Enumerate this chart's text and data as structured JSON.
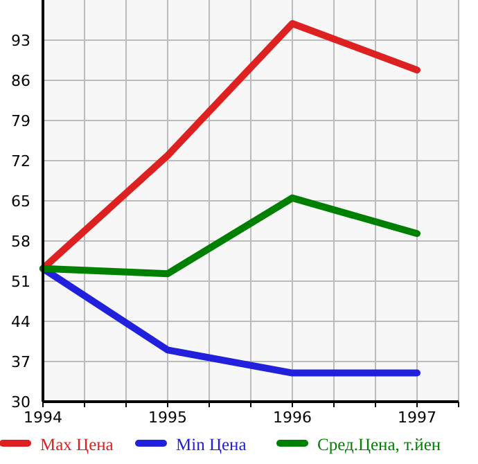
{
  "chart_data": {
    "type": "line",
    "x": [
      1994,
      1995,
      1996,
      1997
    ],
    "series": [
      {
        "name": "Max Цена",
        "color": "#dd2020",
        "values": [
          53.2,
          72.9,
          95.9,
          87.8
        ]
      },
      {
        "name": "Min Цена",
        "color": "#2020dd",
        "values": [
          53.2,
          39.0,
          35.0,
          35.0
        ]
      },
      {
        "name": "Сред.Цена, т.йен",
        "color": "#008000",
        "values": [
          53.2,
          52.3,
          65.5,
          59.3
        ]
      }
    ],
    "xlim": [
      1994,
      1997.3333
    ],
    "xticks": [
      1994,
      {
        "value": 1994.3333,
        "label": null
      },
      {
        "value": 1994.6667,
        "label": null
      },
      1995,
      {
        "value": 1995.3333,
        "label": null
      },
      {
        "value": 1995.6667,
        "label": null
      },
      1996,
      {
        "value": 1996.3333,
        "label": null
      },
      {
        "value": 1996.6667,
        "label": null
      },
      1997,
      {
        "value": 1997.3333,
        "label": null
      }
    ],
    "ylim": [
      30,
      100
    ],
    "yticks": [
      30,
      37,
      44,
      51,
      58,
      65,
      72,
      79,
      86,
      93
    ],
    "grid": true,
    "legend": "bottom",
    "marker": "none",
    "line_style": "solid"
  }
}
